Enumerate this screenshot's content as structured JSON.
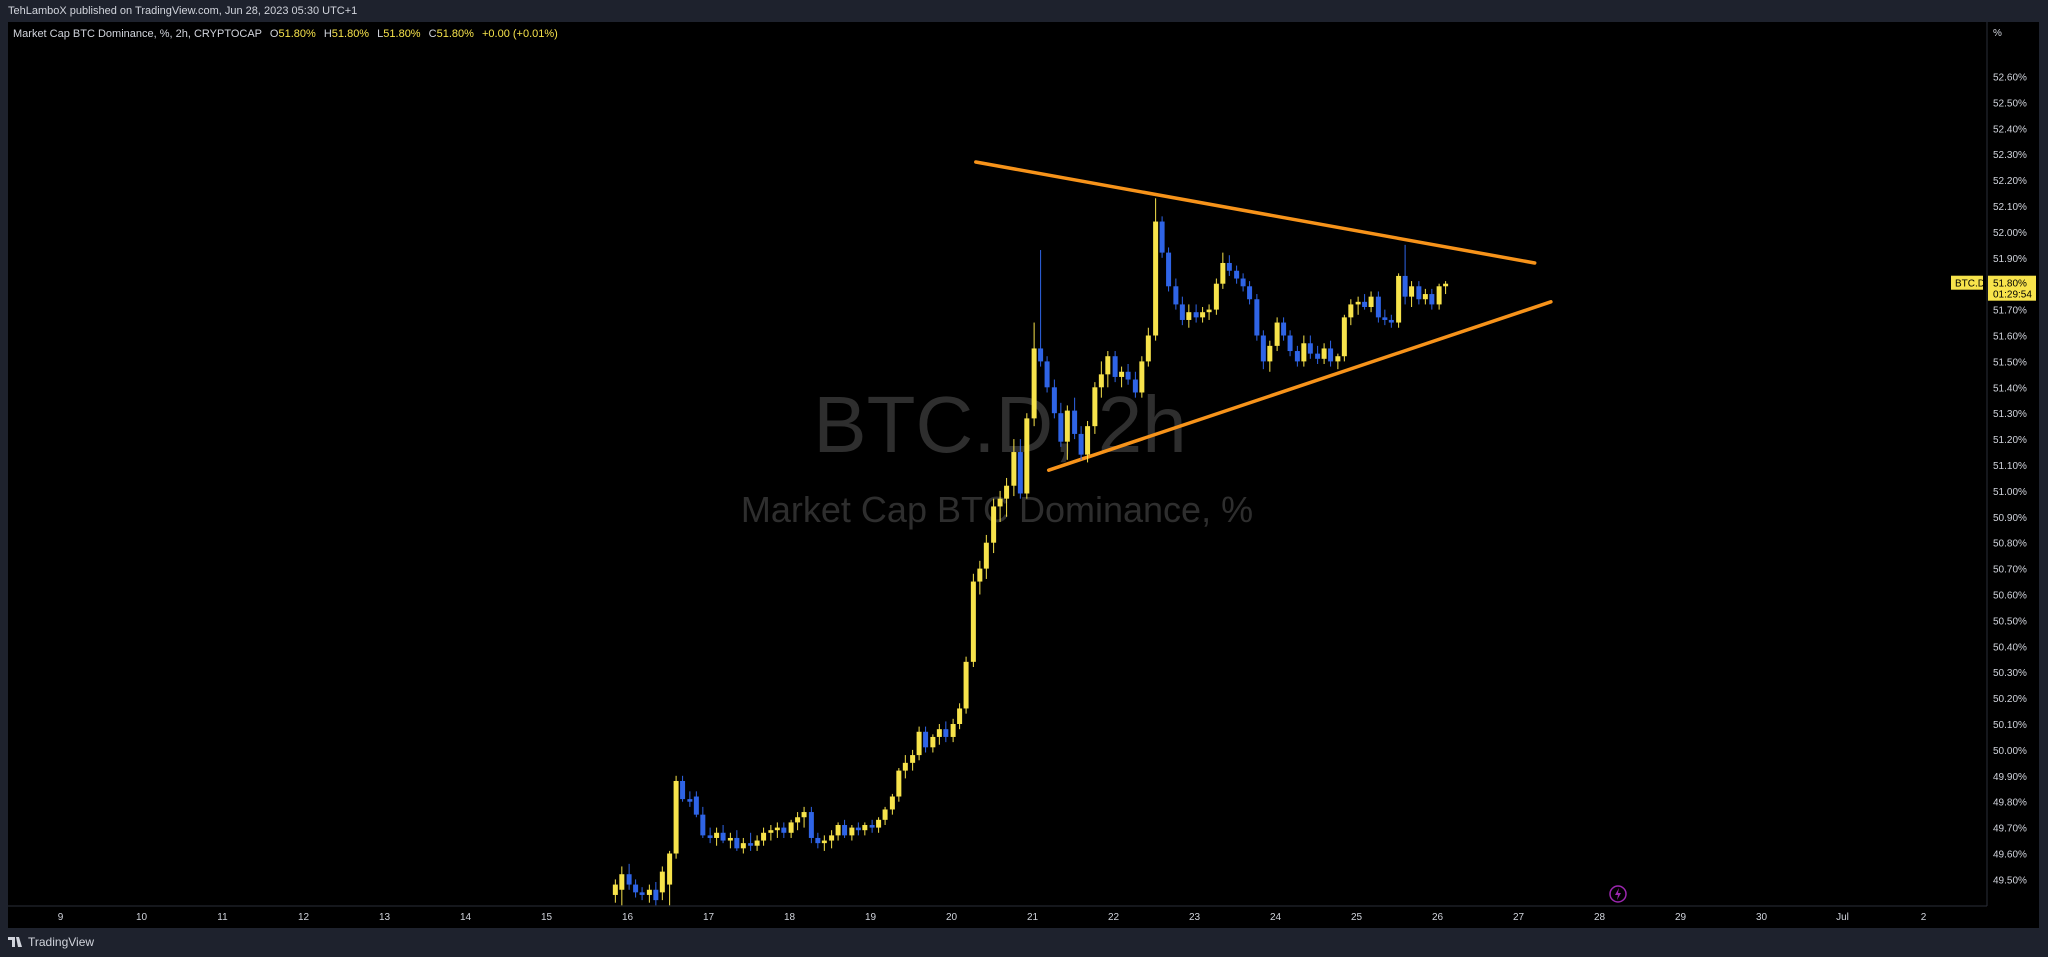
{
  "header": {
    "published_text": "TehLamboX published on TradingView.com, Jun 28, 2023 05:30 UTC+1"
  },
  "legend": {
    "symbol_text": "Market Cap BTC Dominance, %, 2h, CRYPTOCAP",
    "o_label": "O",
    "o_value": "51.80%",
    "h_label": "H",
    "h_value": "51.80%",
    "l_label": "L",
    "l_value": "51.80%",
    "c_label": "C",
    "c_value": "51.80%",
    "change": "+0.00 (+0.01%)"
  },
  "watermark": {
    "symbol": "BTC.D, 2h",
    "description": "Market Cap BTC Dominance, %"
  },
  "price_axis": {
    "unit": "%",
    "ticks": [
      "52.60%",
      "52.50%",
      "52.40%",
      "52.30%",
      "52.20%",
      "52.10%",
      "52.00%",
      "51.90%",
      "51.70%",
      "51.60%",
      "51.50%",
      "51.40%",
      "51.30%",
      "51.20%",
      "51.10%",
      "51.00%",
      "50.90%",
      "50.80%",
      "50.70%",
      "50.60%",
      "50.50%",
      "50.40%",
      "50.30%",
      "50.20%",
      "50.10%",
      "50.00%",
      "49.90%",
      "49.80%",
      "49.70%",
      "49.60%",
      "49.50%"
    ]
  },
  "price_label": {
    "symbol": "BTC.D",
    "value": "51.80%",
    "countdown": "01:29:54"
  },
  "time_axis": {
    "ticks": [
      "9",
      "10",
      "11",
      "12",
      "13",
      "14",
      "15",
      "16",
      "17",
      "18",
      "19",
      "20",
      "21",
      "22",
      "23",
      "24",
      "25",
      "26",
      "27",
      "28",
      "29",
      "30",
      "Jul",
      "2"
    ]
  },
  "footer": {
    "brand": "TradingView"
  },
  "colors": {
    "background": "#000000",
    "frame": "#1e222d",
    "up_candle": "#f7e34b",
    "down_candle": "#2f64e6",
    "trendline": "#f7931a",
    "watermark": "#2e2e2e",
    "text": "#d1d4dc"
  },
  "chart_data": {
    "type": "candlestick",
    "title": "Market Cap BTC Dominance, %, 2h, CRYPTOCAP",
    "x_unit": "day of June 2023",
    "ylim": [
      49.44,
      52.7
    ],
    "candles": [
      {
        "t": 15.85,
        "o": 49.44,
        "h": 49.5,
        "l": 49.41,
        "c": 49.48
      },
      {
        "t": 15.93,
        "o": 49.46,
        "h": 49.55,
        "l": 49.4,
        "c": 49.52
      },
      {
        "t": 16.02,
        "o": 49.52,
        "h": 49.56,
        "l": 49.46,
        "c": 49.48
      },
      {
        "t": 16.1,
        "o": 49.48,
        "h": 49.5,
        "l": 49.43,
        "c": 49.45
      },
      {
        "t": 16.18,
        "o": 49.45,
        "h": 49.47,
        "l": 49.42,
        "c": 49.44
      },
      {
        "t": 16.27,
        "o": 49.44,
        "h": 49.48,
        "l": 49.41,
        "c": 49.46
      },
      {
        "t": 16.35,
        "o": 49.46,
        "h": 49.49,
        "l": 49.4,
        "c": 49.42
      },
      {
        "t": 16.43,
        "o": 49.45,
        "h": 49.55,
        "l": 49.42,
        "c": 49.53
      },
      {
        "t": 16.52,
        "o": 49.48,
        "h": 49.61,
        "l": 49.4,
        "c": 49.6
      },
      {
        "t": 16.6,
        "o": 49.6,
        "h": 49.9,
        "l": 49.58,
        "c": 49.88
      },
      {
        "t": 16.68,
        "o": 49.88,
        "h": 49.9,
        "l": 49.8,
        "c": 49.81
      },
      {
        "t": 16.77,
        "o": 49.81,
        "h": 49.84,
        "l": 49.78,
        "c": 49.8
      },
      {
        "t": 16.85,
        "o": 49.82,
        "h": 49.84,
        "l": 49.74,
        "c": 49.75
      },
      {
        "t": 16.93,
        "o": 49.75,
        "h": 49.78,
        "l": 49.66,
        "c": 49.67
      },
      {
        "t": 17.02,
        "o": 49.67,
        "h": 49.7,
        "l": 49.64,
        "c": 49.66
      },
      {
        "t": 17.1,
        "o": 49.66,
        "h": 49.7,
        "l": 49.63,
        "c": 49.68
      },
      {
        "t": 17.18,
        "o": 49.68,
        "h": 49.71,
        "l": 49.64,
        "c": 49.65
      },
      {
        "t": 17.27,
        "o": 49.65,
        "h": 49.68,
        "l": 49.62,
        "c": 49.66
      },
      {
        "t": 17.35,
        "o": 49.66,
        "h": 49.69,
        "l": 49.61,
        "c": 49.62
      },
      {
        "t": 17.43,
        "o": 49.62,
        "h": 49.66,
        "l": 49.6,
        "c": 49.64
      },
      {
        "t": 17.52,
        "o": 49.64,
        "h": 49.68,
        "l": 49.61,
        "c": 49.63
      },
      {
        "t": 17.6,
        "o": 49.63,
        "h": 49.67,
        "l": 49.61,
        "c": 49.65
      },
      {
        "t": 17.68,
        "o": 49.65,
        "h": 49.7,
        "l": 49.63,
        "c": 49.68
      },
      {
        "t": 17.77,
        "o": 49.68,
        "h": 49.71,
        "l": 49.65,
        "c": 49.69
      },
      {
        "t": 17.85,
        "o": 49.69,
        "h": 49.72,
        "l": 49.66,
        "c": 49.7
      },
      {
        "t": 17.93,
        "o": 49.7,
        "h": 49.72,
        "l": 49.66,
        "c": 49.68
      },
      {
        "t": 18.02,
        "o": 49.68,
        "h": 49.73,
        "l": 49.66,
        "c": 49.72
      },
      {
        "t": 18.1,
        "o": 49.72,
        "h": 49.76,
        "l": 49.69,
        "c": 49.74
      },
      {
        "t": 18.18,
        "o": 49.74,
        "h": 49.78,
        "l": 49.7,
        "c": 49.76
      },
      {
        "t": 18.27,
        "o": 49.76,
        "h": 49.78,
        "l": 49.64,
        "c": 49.66
      },
      {
        "t": 18.35,
        "o": 49.66,
        "h": 49.68,
        "l": 49.62,
        "c": 49.64
      },
      {
        "t": 18.43,
        "o": 49.64,
        "h": 49.67,
        "l": 49.61,
        "c": 49.65
      },
      {
        "t": 18.52,
        "o": 49.65,
        "h": 49.69,
        "l": 49.62,
        "c": 49.67
      },
      {
        "t": 18.6,
        "o": 49.67,
        "h": 49.72,
        "l": 49.65,
        "c": 49.71
      },
      {
        "t": 18.68,
        "o": 49.71,
        "h": 49.73,
        "l": 49.66,
        "c": 49.67
      },
      {
        "t": 18.77,
        "o": 49.67,
        "h": 49.71,
        "l": 49.65,
        "c": 49.7
      },
      {
        "t": 18.85,
        "o": 49.7,
        "h": 49.72,
        "l": 49.67,
        "c": 49.69
      },
      {
        "t": 18.93,
        "o": 49.69,
        "h": 49.72,
        "l": 49.67,
        "c": 49.71
      },
      {
        "t": 19.02,
        "o": 49.71,
        "h": 49.73,
        "l": 49.68,
        "c": 49.7
      },
      {
        "t": 19.1,
        "o": 49.7,
        "h": 49.74,
        "l": 49.68,
        "c": 49.73
      },
      {
        "t": 19.18,
        "o": 49.73,
        "h": 49.78,
        "l": 49.71,
        "c": 49.77
      },
      {
        "t": 19.27,
        "o": 49.77,
        "h": 49.83,
        "l": 49.75,
        "c": 49.82
      },
      {
        "t": 19.35,
        "o": 49.82,
        "h": 49.93,
        "l": 49.8,
        "c": 49.92
      },
      {
        "t": 19.43,
        "o": 49.92,
        "h": 49.98,
        "l": 49.89,
        "c": 49.95
      },
      {
        "t": 19.52,
        "o": 49.95,
        "h": 50.0,
        "l": 49.92,
        "c": 49.98
      },
      {
        "t": 19.6,
        "o": 49.98,
        "h": 50.09,
        "l": 49.96,
        "c": 50.07
      },
      {
        "t": 19.68,
        "o": 50.07,
        "h": 50.09,
        "l": 49.99,
        "c": 50.01
      },
      {
        "t": 19.77,
        "o": 50.01,
        "h": 50.06,
        "l": 49.99,
        "c": 50.05
      },
      {
        "t": 19.85,
        "o": 50.05,
        "h": 50.1,
        "l": 50.02,
        "c": 50.08
      },
      {
        "t": 19.93,
        "o": 50.08,
        "h": 50.11,
        "l": 50.03,
        "c": 50.05
      },
      {
        "t": 20.02,
        "o": 50.05,
        "h": 50.12,
        "l": 50.03,
        "c": 50.1
      },
      {
        "t": 20.1,
        "o": 50.1,
        "h": 50.18,
        "l": 50.08,
        "c": 50.16
      },
      {
        "t": 20.18,
        "o": 50.16,
        "h": 50.36,
        "l": 50.14,
        "c": 50.34
      },
      {
        "t": 20.27,
        "o": 50.34,
        "h": 50.68,
        "l": 50.32,
        "c": 50.65
      },
      {
        "t": 20.35,
        "o": 50.65,
        "h": 50.73,
        "l": 50.6,
        "c": 50.7
      },
      {
        "t": 20.43,
        "o": 50.7,
        "h": 50.83,
        "l": 50.66,
        "c": 50.8
      },
      {
        "t": 20.52,
        "o": 50.8,
        "h": 50.97,
        "l": 50.76,
        "c": 50.94
      },
      {
        "t": 20.6,
        "o": 50.94,
        "h": 51.0,
        "l": 50.88,
        "c": 50.97
      },
      {
        "t": 20.68,
        "o": 50.97,
        "h": 51.05,
        "l": 50.9,
        "c": 51.02
      },
      {
        "t": 20.77,
        "o": 51.02,
        "h": 51.2,
        "l": 50.98,
        "c": 51.15
      },
      {
        "t": 20.85,
        "o": 51.15,
        "h": 51.2,
        "l": 50.97,
        "c": 50.99
      },
      {
        "t": 20.93,
        "o": 50.99,
        "h": 51.3,
        "l": 50.97,
        "c": 51.28
      },
      {
        "t": 21.02,
        "o": 51.28,
        "h": 51.65,
        "l": 51.25,
        "c": 51.55
      },
      {
        "t": 21.1,
        "o": 51.55,
        "h": 51.93,
        "l": 51.48,
        "c": 51.5
      },
      {
        "t": 21.18,
        "o": 51.5,
        "h": 51.52,
        "l": 51.38,
        "c": 51.4
      },
      {
        "t": 21.27,
        "o": 51.4,
        "h": 51.43,
        "l": 51.28,
        "c": 51.3
      },
      {
        "t": 21.35,
        "o": 51.3,
        "h": 51.34,
        "l": 51.17,
        "c": 51.19
      },
      {
        "t": 21.43,
        "o": 51.19,
        "h": 51.33,
        "l": 51.12,
        "c": 51.31
      },
      {
        "t": 21.52,
        "o": 51.31,
        "h": 51.36,
        "l": 51.2,
        "c": 51.22
      },
      {
        "t": 21.6,
        "o": 51.22,
        "h": 51.25,
        "l": 51.12,
        "c": 51.14
      },
      {
        "t": 21.68,
        "o": 51.14,
        "h": 51.27,
        "l": 51.11,
        "c": 51.25
      },
      {
        "t": 21.77,
        "o": 51.25,
        "h": 51.42,
        "l": 51.22,
        "c": 51.4
      },
      {
        "t": 21.85,
        "o": 51.4,
        "h": 51.5,
        "l": 51.36,
        "c": 51.45
      },
      {
        "t": 21.93,
        "o": 51.45,
        "h": 51.54,
        "l": 51.4,
        "c": 51.52
      },
      {
        "t": 22.02,
        "o": 51.52,
        "h": 51.54,
        "l": 51.42,
        "c": 51.44
      },
      {
        "t": 22.1,
        "o": 51.44,
        "h": 51.48,
        "l": 51.4,
        "c": 51.46
      },
      {
        "t": 22.18,
        "o": 51.46,
        "h": 51.49,
        "l": 51.41,
        "c": 51.43
      },
      {
        "t": 22.27,
        "o": 51.43,
        "h": 51.46,
        "l": 51.36,
        "c": 51.38
      },
      {
        "t": 22.35,
        "o": 51.38,
        "h": 51.52,
        "l": 51.36,
        "c": 51.5
      },
      {
        "t": 22.43,
        "o": 51.5,
        "h": 51.63,
        "l": 51.48,
        "c": 51.6
      },
      {
        "t": 22.52,
        "o": 51.6,
        "h": 52.13,
        "l": 51.58,
        "c": 52.04
      },
      {
        "t": 22.6,
        "o": 52.04,
        "h": 52.06,
        "l": 51.9,
        "c": 51.92
      },
      {
        "t": 22.68,
        "o": 51.92,
        "h": 51.94,
        "l": 51.77,
        "c": 51.79
      },
      {
        "t": 22.77,
        "o": 51.79,
        "h": 51.82,
        "l": 51.7,
        "c": 51.72
      },
      {
        "t": 22.85,
        "o": 51.72,
        "h": 51.75,
        "l": 51.64,
        "c": 51.66
      },
      {
        "t": 22.93,
        "o": 51.66,
        "h": 51.72,
        "l": 51.63,
        "c": 51.69
      },
      {
        "t": 23.02,
        "o": 51.69,
        "h": 51.72,
        "l": 51.65,
        "c": 51.67
      },
      {
        "t": 23.1,
        "o": 51.67,
        "h": 51.71,
        "l": 51.65,
        "c": 51.69
      },
      {
        "t": 23.18,
        "o": 51.69,
        "h": 51.72,
        "l": 51.66,
        "c": 51.7
      },
      {
        "t": 23.27,
        "o": 51.7,
        "h": 51.82,
        "l": 51.68,
        "c": 51.8
      },
      {
        "t": 23.35,
        "o": 51.8,
        "h": 51.92,
        "l": 51.78,
        "c": 51.88
      },
      {
        "t": 23.43,
        "o": 51.88,
        "h": 51.91,
        "l": 51.83,
        "c": 51.85
      },
      {
        "t": 23.52,
        "o": 51.85,
        "h": 51.87,
        "l": 51.8,
        "c": 51.82
      },
      {
        "t": 23.6,
        "o": 51.82,
        "h": 51.84,
        "l": 51.77,
        "c": 51.79
      },
      {
        "t": 23.68,
        "o": 51.79,
        "h": 51.81,
        "l": 51.72,
        "c": 51.74
      },
      {
        "t": 23.77,
        "o": 51.74,
        "h": 51.76,
        "l": 51.58,
        "c": 51.6
      },
      {
        "t": 23.85,
        "o": 51.6,
        "h": 51.62,
        "l": 51.47,
        "c": 51.5
      },
      {
        "t": 23.93,
        "o": 51.5,
        "h": 51.58,
        "l": 51.46,
        "c": 51.56
      },
      {
        "t": 24.02,
        "o": 51.56,
        "h": 51.67,
        "l": 51.54,
        "c": 51.65
      },
      {
        "t": 24.1,
        "o": 51.65,
        "h": 51.67,
        "l": 51.58,
        "c": 51.6
      },
      {
        "t": 24.18,
        "o": 51.6,
        "h": 51.62,
        "l": 51.52,
        "c": 51.54
      },
      {
        "t": 24.27,
        "o": 51.54,
        "h": 51.56,
        "l": 51.48,
        "c": 51.5
      },
      {
        "t": 24.35,
        "o": 51.5,
        "h": 51.6,
        "l": 51.48,
        "c": 51.57
      },
      {
        "t": 24.43,
        "o": 51.57,
        "h": 51.6,
        "l": 51.51,
        "c": 51.53
      },
      {
        "t": 24.52,
        "o": 51.53,
        "h": 51.56,
        "l": 51.49,
        "c": 51.51
      },
      {
        "t": 24.6,
        "o": 51.51,
        "h": 51.57,
        "l": 51.49,
        "c": 51.55
      },
      {
        "t": 24.68,
        "o": 51.55,
        "h": 51.58,
        "l": 51.48,
        "c": 51.5
      },
      {
        "t": 24.77,
        "o": 51.5,
        "h": 51.53,
        "l": 51.47,
        "c": 51.52
      },
      {
        "t": 24.85,
        "o": 51.52,
        "h": 51.68,
        "l": 51.5,
        "c": 51.67
      },
      {
        "t": 24.93,
        "o": 51.67,
        "h": 51.74,
        "l": 51.64,
        "c": 51.72
      },
      {
        "t": 25.02,
        "o": 51.72,
        "h": 51.75,
        "l": 51.68,
        "c": 51.73
      },
      {
        "t": 25.1,
        "o": 51.73,
        "h": 51.76,
        "l": 51.7,
        "c": 51.71
      },
      {
        "t": 25.18,
        "o": 51.71,
        "h": 51.77,
        "l": 51.69,
        "c": 51.75
      },
      {
        "t": 25.27,
        "o": 51.75,
        "h": 51.77,
        "l": 51.65,
        "c": 51.67
      },
      {
        "t": 25.35,
        "o": 51.67,
        "h": 51.7,
        "l": 51.64,
        "c": 51.66
      },
      {
        "t": 25.43,
        "o": 51.66,
        "h": 51.68,
        "l": 51.63,
        "c": 51.65
      },
      {
        "t": 25.52,
        "o": 51.65,
        "h": 51.84,
        "l": 51.63,
        "c": 51.83
      },
      {
        "t": 25.6,
        "o": 51.83,
        "h": 51.95,
        "l": 51.72,
        "c": 51.75
      },
      {
        "t": 25.68,
        "o": 51.75,
        "h": 51.81,
        "l": 51.71,
        "c": 51.79
      },
      {
        "t": 25.77,
        "o": 51.79,
        "h": 51.81,
        "l": 51.72,
        "c": 51.74
      },
      {
        "t": 25.85,
        "o": 51.74,
        "h": 51.78,
        "l": 51.72,
        "c": 51.76
      },
      {
        "t": 25.93,
        "o": 51.76,
        "h": 51.78,
        "l": 51.7,
        "c": 51.72
      },
      {
        "t": 26.02,
        "o": 51.72,
        "h": 51.8,
        "l": 51.7,
        "c": 51.79
      },
      {
        "t": 26.1,
        "o": 51.79,
        "h": 51.81,
        "l": 51.76,
        "c": 51.8
      }
    ],
    "trendlines": [
      {
        "name": "upper",
        "from": {
          "t": 20.3,
          "y": 52.27
        },
        "to": {
          "t": 27.2,
          "y": 51.88
        }
      },
      {
        "name": "lower",
        "from": {
          "t": 21.2,
          "y": 51.08
        },
        "to": {
          "t": 27.4,
          "y": 51.73
        }
      }
    ]
  }
}
